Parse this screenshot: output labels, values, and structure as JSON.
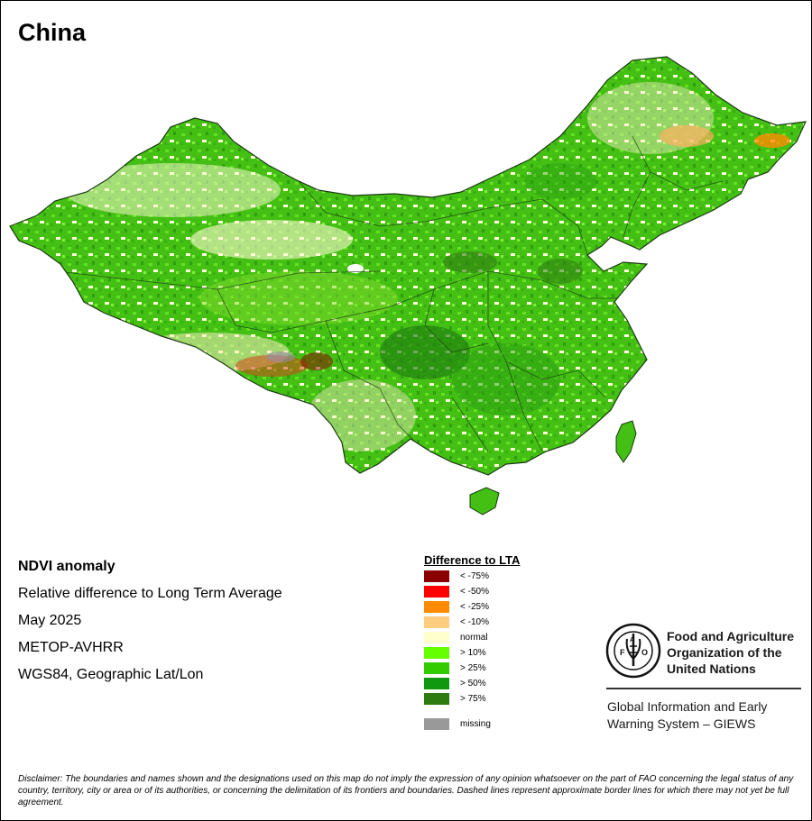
{
  "title": "China",
  "info": {
    "line1": "NDVI anomaly",
    "line2": "Relative difference to Long Term Average",
    "line3": "May 2025",
    "line4": "METOP-AVHRR",
    "line5": "WGS84, Geographic Lat/Lon"
  },
  "legend": {
    "title": "Difference to LTA",
    "items": [
      {
        "label": "< -75%",
        "color": "#8b0000"
      },
      {
        "label": "< -50%",
        "color": "#ff0000"
      },
      {
        "label": "< -25%",
        "color": "#ff8c00"
      },
      {
        "label": "< -10%",
        "color": "#ffcc80"
      },
      {
        "label": "normal",
        "color": "#ffffcc"
      },
      {
        "label": "> 10%",
        "color": "#66ff00"
      },
      {
        "label": "> 25%",
        "color": "#33cc00"
      },
      {
        "label": "> 50%",
        "color": "#109910"
      },
      {
        "label": "> 75%",
        "color": "#2e7b10"
      }
    ],
    "missing": {
      "label": "missing",
      "color": "#999999"
    }
  },
  "fao": {
    "name_line1": "Food and Agriculture",
    "name_line2": "Organization of the",
    "name_line3": "United Nations",
    "giews_line1": "Global Information and Early",
    "giews_line2": "Warning System – GIEWS"
  },
  "disclaimer": "Disclaimer: The boundaries and names shown and the designations used on this map do not imply the expression of any opinion whatsoever on the part of FAO concerning the legal status of any country, territory, city or area or of its authorities, or concerning the delimitation of its frontiers and boundaries. Dashed lines represent approximate border lines for which there may not yet be full agreement."
}
